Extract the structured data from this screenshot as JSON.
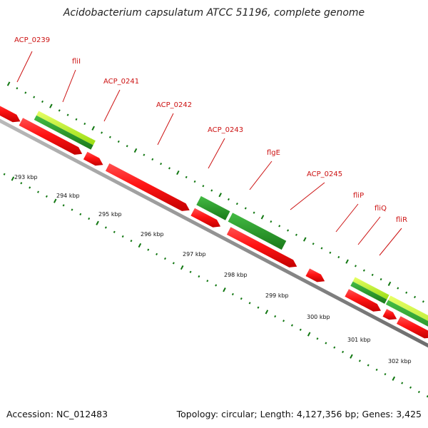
{
  "title": "Acidobacterium capsulatum ATCC 51196, complete genome",
  "footer": {
    "accession": "Accession: NC_012483",
    "summary": "Topology: circular; Length: 4,127,356 bp; Genes: 3,425"
  },
  "colors": {
    "forward_gene": "#22aa22",
    "forward_gene_light": "#aaee22",
    "reverse_gene": "#ee1111",
    "backbone": "#888888",
    "tick": "#117711",
    "label": "#cc1111"
  },
  "gene_labels": [
    "ACP_0239",
    "fliI",
    "ACP_0241",
    "ACP_0242",
    "ACP_0243",
    "flgE",
    "ACP_0245",
    "fliP",
    "fliQ",
    "fliR"
  ],
  "scale_labels": [
    "293 kbp",
    "294 kbp",
    "295 kbp",
    "296 kbp",
    "297 kbp",
    "298 kbp",
    "299 kbp",
    "300 kbp",
    "301 kbp",
    "302 kbp"
  ]
}
